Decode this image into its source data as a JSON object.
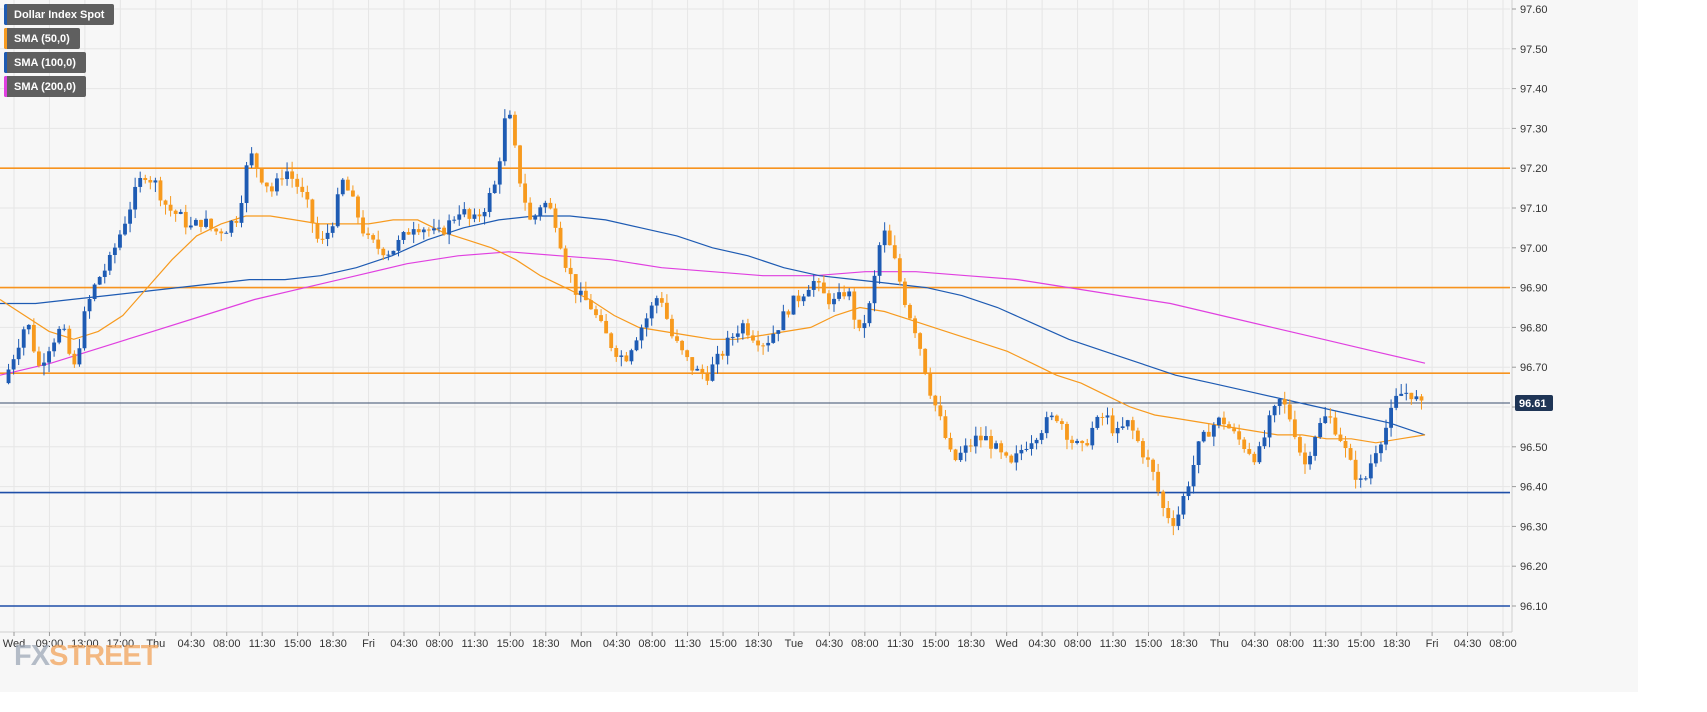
{
  "legend": [
    {
      "label": "Dollar Index Spot",
      "color": "#1e5bb3"
    },
    {
      "label": "SMA (50,0)",
      "color": "#f79a1e"
    },
    {
      "label": "SMA (100,0)",
      "color": "#1e5bb3"
    },
    {
      "label": "SMA (200,0)",
      "color": "#e040e0"
    }
  ],
  "brand": {
    "fx": "FX",
    "street": "STREET"
  },
  "colors": {
    "up_candle": "#1e5bb3",
    "down_candle": "#f79a1e",
    "resistance_line": "#f7931e",
    "support_line": "#1e4fa8",
    "current_price_line": "#3a4e6e",
    "sma50": "#f79a1e",
    "sma100": "#1e5bb3",
    "sma200": "#e040e0",
    "grid": "#e6e6e6",
    "background": "#f7f7f7"
  },
  "chart_data": {
    "type": "candlestick",
    "title": "",
    "symbol": "Dollar Index Spot",
    "current_price": "96.61",
    "ylim": [
      96.05,
      97.62
    ],
    "y_ticks": [
      "97.60",
      "97.50",
      "97.40",
      "97.30",
      "97.20",
      "97.10",
      "97.00",
      "96.90",
      "96.80",
      "96.70",
      "96.60",
      "96.50",
      "96.40",
      "96.30",
      "96.20",
      "96.10"
    ],
    "x_ticks": [
      "Wed",
      "09:00",
      "13:00",
      "17:00",
      "Thu",
      "04:30",
      "08:00",
      "11:30",
      "15:00",
      "18:30",
      "Fri",
      "04:30",
      "08:00",
      "11:30",
      "15:00",
      "18:30",
      "Mon",
      "04:30",
      "08:00",
      "11:30",
      "15:00",
      "18:30",
      "Tue",
      "04:30",
      "08:00",
      "11:30",
      "15:00",
      "18:30",
      "Wed",
      "04:30",
      "08:00",
      "11:30",
      "15:00",
      "18:30",
      "Thu",
      "04:30",
      "08:00",
      "11:30",
      "15:00",
      "18:30",
      "Fri",
      "04:30",
      "08:00"
    ],
    "grid": true,
    "horizontal_levels": [
      {
        "value": 97.2,
        "kind": "resistance"
      },
      {
        "value": 96.9,
        "kind": "resistance"
      },
      {
        "value": 96.685,
        "kind": "resistance"
      },
      {
        "value": 96.61,
        "kind": "current"
      },
      {
        "value": 96.385,
        "kind": "support"
      },
      {
        "value": 96.1,
        "kind": "support"
      }
    ],
    "close_path": [
      96.66,
      96.74,
      96.82,
      96.7,
      96.76,
      96.8,
      96.69,
      96.84,
      96.92,
      96.96,
      97.04,
      97.12,
      97.19,
      97.16,
      97.1,
      97.08,
      97.05,
      97.07,
      97.04,
      97.05,
      97.08,
      97.24,
      97.18,
      97.14,
      97.2,
      97.16,
      97.1,
      97.0,
      97.06,
      97.17,
      97.1,
      97.02,
      97.0,
      96.99,
      97.02,
      97.06,
      97.05,
      97.03,
      97.06,
      97.1,
      97.06,
      97.1,
      97.16,
      97.36,
      97.18,
      97.06,
      97.12,
      97.08,
      96.96,
      96.88,
      96.86,
      96.8,
      96.75,
      96.72,
      96.78,
      96.83,
      96.89,
      96.78,
      96.73,
      96.69,
      96.68,
      96.72,
      96.77,
      96.81,
      96.78,
      96.76,
      96.8,
      96.85,
      96.88,
      96.92,
      96.88,
      96.86,
      96.9,
      96.78,
      96.86,
      97.05,
      96.97,
      96.86,
      96.78,
      96.65,
      96.56,
      96.46,
      96.49,
      96.52,
      96.52,
      96.48,
      96.45,
      96.5,
      96.53,
      96.56,
      96.58,
      96.52,
      96.49,
      96.55,
      96.58,
      96.53,
      96.56,
      96.5,
      96.44,
      96.34,
      96.31,
      96.4,
      96.5,
      96.55,
      96.57,
      96.53,
      96.5,
      96.47,
      96.56,
      96.62,
      96.56,
      96.45,
      96.54,
      96.58,
      96.53,
      96.45,
      96.4,
      96.49,
      96.55,
      96.63,
      96.64,
      96.6
    ],
    "sma50_path": [
      96.87,
      96.83,
      96.79,
      96.77,
      96.79,
      96.83,
      96.9,
      96.97,
      97.03,
      97.06,
      97.08,
      97.08,
      97.07,
      97.06,
      97.06,
      97.06,
      97.07,
      97.07,
      97.04,
      97.02,
      97.0,
      96.97,
      96.93,
      96.9,
      96.87,
      96.83,
      96.8,
      96.79,
      96.78,
      96.77,
      96.77,
      96.78,
      96.79,
      96.8,
      96.83,
      96.85,
      96.84,
      96.82,
      96.8,
      96.78,
      96.76,
      96.74,
      96.71,
      96.68,
      96.66,
      96.63,
      96.6,
      96.58,
      96.57,
      96.56,
      96.55,
      96.54,
      96.53,
      96.53,
      96.52,
      96.52,
      96.51,
      96.52,
      96.53
    ],
    "sma100_path": [
      96.86,
      96.86,
      96.87,
      96.88,
      96.89,
      96.9,
      96.91,
      96.92,
      96.92,
      96.93,
      96.95,
      96.98,
      97.02,
      97.05,
      97.07,
      97.08,
      97.08,
      97.07,
      97.05,
      97.03,
      97.0,
      96.98,
      96.95,
      96.93,
      96.92,
      96.91,
      96.9,
      96.88,
      96.85,
      96.81,
      96.77,
      96.74,
      96.71,
      96.68,
      96.66,
      96.64,
      96.62,
      96.6,
      96.58,
      96.56,
      96.53
    ],
    "sma200_path": [
      96.68,
      96.71,
      96.75,
      96.79,
      96.83,
      96.87,
      96.9,
      96.93,
      96.96,
      96.98,
      96.99,
      96.98,
      96.97,
      96.95,
      96.94,
      96.93,
      96.93,
      96.94,
      96.94,
      96.93,
      96.92,
      96.9,
      96.88,
      96.86,
      96.83,
      96.8,
      96.77,
      96.74,
      96.71
    ]
  }
}
